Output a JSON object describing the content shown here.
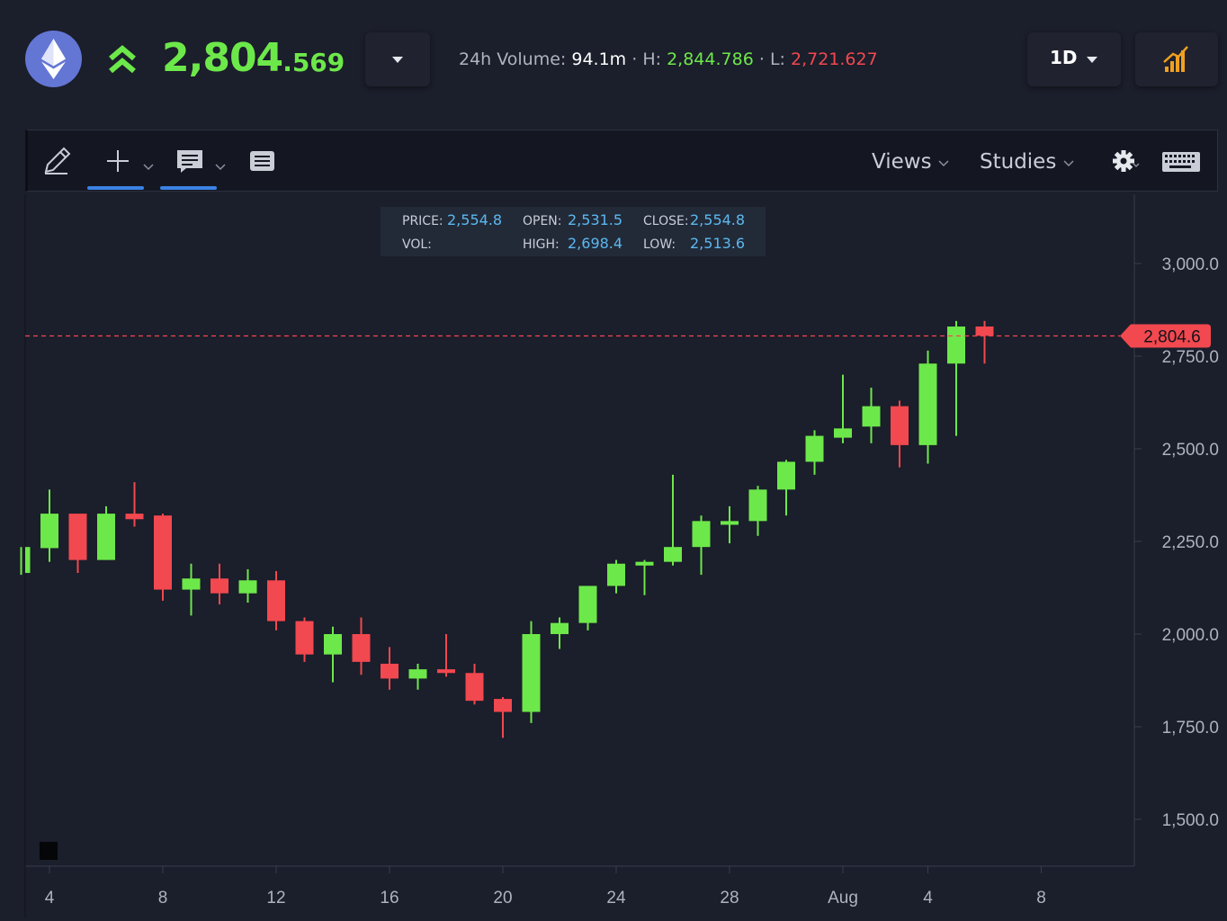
{
  "header": {
    "asset_icon": "ethereum-icon",
    "trend_icon": "double-chevron-up-icon",
    "price_main": "2,804",
    "price_decimals": ".569",
    "volume_label": "24h Volume:",
    "volume_value": "94.1m",
    "high_label": "H:",
    "high_value": "2,844.786",
    "low_label": "L:",
    "low_value": "2,721.627",
    "separator": "·",
    "timeframe": "1D",
    "indicator_icon": "bar-chart-icon"
  },
  "toolbar": {
    "draw_icon": "pencil-icon",
    "crosshair_icon": "crosshair-plus-icon",
    "comment_icon": "comment-icon",
    "list_icon": "list-icon",
    "views_label": "Views",
    "studies_label": "Studies",
    "settings_icon": "gear-icon",
    "keyboard_icon": "keyboard-icon"
  },
  "ohlc": {
    "price_label": "PRICE:",
    "price_value": "2,554.8",
    "open_label": "OPEN:",
    "open_value": "2,531.5",
    "close_label": "CLOSE:",
    "close_value": "2,554.8",
    "vol_label": "VOL:",
    "high_label": "HIGH:",
    "high_value": "2,698.4",
    "low_label": "LOW:",
    "low_value": "2,513.6"
  },
  "colors": {
    "up": "#6de84a",
    "down": "#f2484f",
    "background": "#1b1e2b",
    "accent": "#3b82e6"
  },
  "chart_data": {
    "type": "candlestick",
    "y_ticks": [
      "3,000.0",
      "2,750.0",
      "2,500.0",
      "2,250.0",
      "2,000.0",
      "1,750.0",
      "1,500.0"
    ],
    "y_tick_values": [
      3000,
      2750,
      2500,
      2250,
      2000,
      1750,
      1500
    ],
    "x_tick_labels": [
      "4",
      "8",
      "12",
      "16",
      "20",
      "24",
      "28",
      "Aug",
      "4",
      "8"
    ],
    "x_tick_days": [
      4,
      8,
      12,
      16,
      20,
      24,
      28,
      32,
      35,
      39
    ],
    "current_price": 2804.6,
    "current_price_label": "2,804.6",
    "candles": [
      {
        "day": 3,
        "open": 2165,
        "close": 2235,
        "high": 2235,
        "low": 2160
      },
      {
        "day": 4,
        "open": 2232,
        "close": 2325,
        "high": 2390,
        "low": 2195
      },
      {
        "day": 5,
        "open": 2325,
        "close": 2200,
        "high": 2325,
        "low": 2165
      },
      {
        "day": 6,
        "open": 2200,
        "close": 2325,
        "high": 2345,
        "low": 2200
      },
      {
        "day": 7,
        "open": 2325,
        "close": 2310,
        "high": 2410,
        "low": 2290
      },
      {
        "day": 8,
        "open": 2320,
        "close": 2120,
        "high": 2325,
        "low": 2090
      },
      {
        "day": 9,
        "open": 2120,
        "close": 2150,
        "high": 2190,
        "low": 2050
      },
      {
        "day": 10,
        "open": 2150,
        "close": 2110,
        "high": 2190,
        "low": 2080
      },
      {
        "day": 11,
        "open": 2110,
        "close": 2145,
        "high": 2175,
        "low": 2085
      },
      {
        "day": 12,
        "open": 2145,
        "close": 2035,
        "high": 2170,
        "low": 2010
      },
      {
        "day": 13,
        "open": 2035,
        "close": 1945,
        "high": 2045,
        "low": 1925
      },
      {
        "day": 14,
        "open": 1945,
        "close": 2000,
        "high": 2020,
        "low": 1870
      },
      {
        "day": 15,
        "open": 2000,
        "close": 1925,
        "high": 2045,
        "low": 1890
      },
      {
        "day": 16,
        "open": 1920,
        "close": 1880,
        "high": 1965,
        "low": 1850
      },
      {
        "day": 17,
        "open": 1880,
        "close": 1905,
        "high": 1920,
        "low": 1850
      },
      {
        "day": 18,
        "open": 1905,
        "close": 1895,
        "high": 2000,
        "low": 1885
      },
      {
        "day": 19,
        "open": 1895,
        "close": 1820,
        "high": 1920,
        "low": 1810
      },
      {
        "day": 20,
        "open": 1825,
        "close": 1790,
        "high": 1830,
        "low": 1720
      },
      {
        "day": 21,
        "open": 1790,
        "close": 2000,
        "high": 2035,
        "low": 1760
      },
      {
        "day": 22,
        "open": 2000,
        "close": 2030,
        "high": 2045,
        "low": 1960
      },
      {
        "day": 23,
        "open": 2030,
        "close": 2130,
        "high": 2130,
        "low": 2010
      },
      {
        "day": 24,
        "open": 2130,
        "close": 2190,
        "high": 2200,
        "low": 2110
      },
      {
        "day": 25,
        "open": 2185,
        "close": 2195,
        "high": 2200,
        "low": 2105
      },
      {
        "day": 26,
        "open": 2195,
        "close": 2235,
        "high": 2430,
        "low": 2185
      },
      {
        "day": 27,
        "open": 2235,
        "close": 2305,
        "high": 2320,
        "low": 2160
      },
      {
        "day": 28,
        "open": 2295,
        "close": 2305,
        "high": 2345,
        "low": 2245
      },
      {
        "day": 29,
        "open": 2305,
        "close": 2390,
        "high": 2400,
        "low": 2265
      },
      {
        "day": 30,
        "open": 2390,
        "close": 2465,
        "high": 2470,
        "low": 2320
      },
      {
        "day": 31,
        "open": 2465,
        "close": 2535,
        "high": 2550,
        "low": 2430
      },
      {
        "day": 32,
        "open": 2530,
        "close": 2555,
        "high": 2700,
        "low": 2515
      },
      {
        "day": 33,
        "open": 2560,
        "close": 2615,
        "high": 2665,
        "low": 2515
      },
      {
        "day": 34,
        "open": 2615,
        "close": 2510,
        "high": 2630,
        "low": 2450
      },
      {
        "day": 35,
        "open": 2510,
        "close": 2730,
        "high": 2765,
        "low": 2460
      },
      {
        "day": 36,
        "open": 2730,
        "close": 2830,
        "high": 2845,
        "low": 2535
      },
      {
        "day": 37,
        "open": 2830,
        "close": 2805,
        "high": 2845,
        "low": 2730
      }
    ]
  }
}
